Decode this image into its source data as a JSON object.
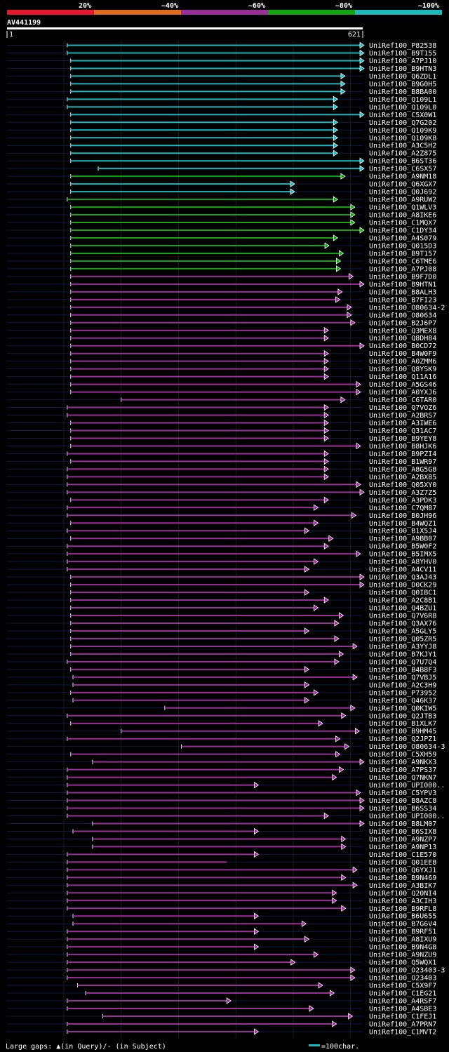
{
  "chart_data": {
    "type": "alignment-overview",
    "title": "AV441199",
    "query_length": 621,
    "axis": {
      "start_label": "1",
      "end_label": "621"
    },
    "identity_legend": [
      {
        "label": "20%",
        "color": "#e8172c"
      },
      {
        "label": "~40%",
        "color": "#e36c1b"
      },
      {
        "label": "~60%",
        "color": "#9b2f9a"
      },
      {
        "label": "~80%",
        "color": "#13a313"
      },
      {
        "label": "~100%",
        "color": "#1bb8be"
      }
    ],
    "gap_legend": "Large gaps: ▲(in Query)/- (in Subject)",
    "scale_legend": "=100char.",
    "hits": [
      {
        "id": "UniRef100_P82538",
        "start": 106,
        "end": 621,
        "cls": 4,
        "arrow": true
      },
      {
        "id": "UniRef100_B9T155",
        "start": 106,
        "end": 621,
        "cls": 4,
        "arrow": true
      },
      {
        "id": "UniRef100_A7PJ10",
        "start": 112,
        "end": 621,
        "cls": 4,
        "arrow": true
      },
      {
        "id": "UniRef100_B9HTN3",
        "start": 112,
        "end": 621,
        "cls": 4,
        "arrow": true
      },
      {
        "id": "UniRef100_Q6ZDL1",
        "start": 112,
        "end": 583,
        "cls": 4,
        "arrow": true
      },
      {
        "id": "UniRef100_B9G0H5",
        "start": 112,
        "end": 583,
        "cls": 4,
        "arrow": true
      },
      {
        "id": "UniRef100_B8BA00",
        "start": 112,
        "end": 583,
        "cls": 4,
        "arrow": true
      },
      {
        "id": "UniRef100_Q109L1",
        "start": 106,
        "end": 570,
        "cls": 4,
        "arrow": true
      },
      {
        "id": "UniRef100_Q109L0",
        "start": 106,
        "end": 570,
        "cls": 4,
        "arrow": true
      },
      {
        "id": "UniRef100_C5X0W1",
        "start": 112,
        "end": 621,
        "cls": 4,
        "arrow": true
      },
      {
        "id": "UniRef100_Q7G202",
        "start": 112,
        "end": 570,
        "cls": 4,
        "arrow": true
      },
      {
        "id": "UniRef100_Q109K9",
        "start": 112,
        "end": 570,
        "cls": 4,
        "arrow": true
      },
      {
        "id": "UniRef100_Q109K8",
        "start": 112,
        "end": 570,
        "cls": 4,
        "arrow": true
      },
      {
        "id": "UniRef100_A3C5H2",
        "start": 112,
        "end": 570,
        "cls": 4,
        "arrow": true
      },
      {
        "id": "UniRef100_A2Z875",
        "start": 112,
        "end": 570,
        "cls": 4,
        "arrow": true
      },
      {
        "id": "UniRef100_B6ST36",
        "start": 112,
        "end": 621,
        "cls": 4,
        "arrow": true
      },
      {
        "id": "UniRef100_C6SX57",
        "start": 160,
        "end": 621,
        "cls": 4,
        "arrow": true
      },
      {
        "id": "UniRef100_A9NM18",
        "start": 112,
        "end": 583,
        "cls": 3,
        "arrow": true
      },
      {
        "id": "UniRef100_Q6XGX7",
        "start": 112,
        "end": 495,
        "cls": 4,
        "arrow": true
      },
      {
        "id": "UniRef100_Q0J692",
        "start": 112,
        "end": 495,
        "cls": 4,
        "arrow": true
      },
      {
        "id": "UniRef100_A9RUW2",
        "start": 106,
        "end": 570,
        "cls": 3,
        "arrow": true
      },
      {
        "id": "UniRef100_Q1WLV3",
        "start": 112,
        "end": 600,
        "cls": 3,
        "arrow": true
      },
      {
        "id": "UniRef100_A8IKE6",
        "start": 112,
        "end": 600,
        "cls": 3,
        "arrow": true
      },
      {
        "id": "UniRef100_C1MQX7",
        "start": 112,
        "end": 600,
        "cls": 3,
        "arrow": true
      },
      {
        "id": "UniRef100_C1DY34",
        "start": 112,
        "end": 621,
        "cls": 3,
        "arrow": true
      },
      {
        "id": "UniRef100_A4S079",
        "start": 112,
        "end": 570,
        "cls": 3,
        "arrow": true
      },
      {
        "id": "UniRef100_Q015D3",
        "start": 112,
        "end": 555,
        "cls": 3,
        "arrow": true
      },
      {
        "id": "UniRef100_B9T157",
        "start": 112,
        "end": 580,
        "cls": 3,
        "arrow": true
      },
      {
        "id": "UniRef100_C6TME6",
        "start": 112,
        "end": 575,
        "cls": 3,
        "arrow": true
      },
      {
        "id": "UniRef100_A7PJ08",
        "start": 112,
        "end": 575,
        "cls": 3,
        "arrow": true
      },
      {
        "id": "UniRef100_B9F7D0",
        "start": 112,
        "end": 597,
        "cls": 2,
        "arrow": true
      },
      {
        "id": "UniRef100_B9HTN1",
        "start": 112,
        "end": 627,
        "cls": 2,
        "arrow": true
      },
      {
        "id": "UniRef100_B8ALH3",
        "start": 112,
        "end": 578,
        "cls": 2,
        "arrow": true
      },
      {
        "id": "UniRef100_B7FI23",
        "start": 112,
        "end": 574,
        "cls": 2,
        "arrow": true
      },
      {
        "id": "UniRef100_O80634-2",
        "start": 112,
        "end": 594,
        "cls": 2,
        "arrow": true
      },
      {
        "id": "UniRef100_O80634",
        "start": 112,
        "end": 594,
        "cls": 2,
        "arrow": true
      },
      {
        "id": "UniRef100_B2J6P7",
        "start": 112,
        "end": 600,
        "cls": 2,
        "arrow": true
      },
      {
        "id": "UniRef100_Q3MEX8",
        "start": 112,
        "end": 554,
        "cls": 2,
        "arrow": true
      },
      {
        "id": "UniRef100_Q8DH84",
        "start": 112,
        "end": 554,
        "cls": 2,
        "arrow": true
      },
      {
        "id": "UniRef100_B0CD72",
        "start": 112,
        "end": 630,
        "cls": 2,
        "arrow": true
      },
      {
        "id": "UniRef100_B4W0F9",
        "start": 112,
        "end": 554,
        "cls": 2,
        "arrow": true
      },
      {
        "id": "UniRef100_A0ZMM6",
        "start": 112,
        "end": 554,
        "cls": 2,
        "arrow": true
      },
      {
        "id": "UniRef100_Q8YSK9",
        "start": 112,
        "end": 554,
        "cls": 2,
        "arrow": true
      },
      {
        "id": "UniRef100_Q11A16",
        "start": 112,
        "end": 554,
        "cls": 2,
        "arrow": true
      },
      {
        "id": "UniRef100_A5GS46",
        "start": 112,
        "end": 610,
        "cls": 2,
        "arrow": true
      },
      {
        "id": "UniRef100_A0YXJ6",
        "start": 112,
        "end": 610,
        "cls": 2,
        "arrow": true
      },
      {
        "id": "UniRef100_C6TAR0",
        "start": 200,
        "end": 583,
        "cls": 2,
        "arrow": true
      },
      {
        "id": "UniRef100_Q7VOZ6",
        "start": 106,
        "end": 554,
        "cls": 2,
        "arrow": true
      },
      {
        "id": "UniRef100_A2BRS7",
        "start": 106,
        "end": 554,
        "cls": 2,
        "arrow": true
      },
      {
        "id": "UniRef100_A3IWE6",
        "start": 112,
        "end": 554,
        "cls": 2,
        "arrow": true
      },
      {
        "id": "UniRef100_Q31AC7",
        "start": 112,
        "end": 554,
        "cls": 2,
        "arrow": true
      },
      {
        "id": "UniRef100_B9YEY8",
        "start": 112,
        "end": 554,
        "cls": 2,
        "arrow": true
      },
      {
        "id": "UniRef100_B8HJK6",
        "start": 112,
        "end": 610,
        "cls": 2,
        "arrow": true
      },
      {
        "id": "UniRef100_B9PZI4",
        "start": 106,
        "end": 554,
        "cls": 2,
        "arrow": true
      },
      {
        "id": "UniRef100_B1WR97",
        "start": 112,
        "end": 554,
        "cls": 2,
        "arrow": true
      },
      {
        "id": "UniRef100_A8G5G8",
        "start": 106,
        "end": 554,
        "cls": 2,
        "arrow": true
      },
      {
        "id": "UniRef100_A2BX85",
        "start": 106,
        "end": 554,
        "cls": 2,
        "arrow": true
      },
      {
        "id": "UniRef100_Q05XY0",
        "start": 106,
        "end": 610,
        "cls": 2,
        "arrow": true
      },
      {
        "id": "UniRef100_A3Z7Z5",
        "start": 106,
        "end": 620,
        "cls": 2,
        "arrow": true
      },
      {
        "id": "UniRef100_A3PDK3",
        "start": 112,
        "end": 554,
        "cls": 2,
        "arrow": true
      },
      {
        "id": "UniRef100_C7QM87",
        "start": 106,
        "end": 536,
        "cls": 2,
        "arrow": true
      },
      {
        "id": "UniRef100_B0JH96",
        "start": 106,
        "end": 602,
        "cls": 2,
        "arrow": true
      },
      {
        "id": "UniRef100_B4WQZ1",
        "start": 112,
        "end": 536,
        "cls": 2,
        "arrow": true
      },
      {
        "id": "UniRef100_B1X5J4",
        "start": 106,
        "end": 520,
        "cls": 2,
        "arrow": true
      },
      {
        "id": "UniRef100_A9BB07",
        "start": 112,
        "end": 562,
        "cls": 2,
        "arrow": true
      },
      {
        "id": "UniRef100_B5W0F2",
        "start": 106,
        "end": 554,
        "cls": 2,
        "arrow": true
      },
      {
        "id": "UniRef100_B5IMX5",
        "start": 106,
        "end": 610,
        "cls": 2,
        "arrow": true
      },
      {
        "id": "UniRef100_A8YHV0",
        "start": 106,
        "end": 536,
        "cls": 2,
        "arrow": true
      },
      {
        "id": "UniRef100_A4CV11",
        "start": 106,
        "end": 520,
        "cls": 2,
        "arrow": true
      },
      {
        "id": "UniRef100_Q3AJ43",
        "start": 112,
        "end": 620,
        "cls": 2,
        "arrow": true
      },
      {
        "id": "UniRef100_D0CK29",
        "start": 112,
        "end": 620,
        "cls": 2,
        "arrow": true
      },
      {
        "id": "UniRef100_Q0IBC1",
        "start": 112,
        "end": 520,
        "cls": 2,
        "arrow": true
      },
      {
        "id": "UniRef100_A2C8B1",
        "start": 112,
        "end": 554,
        "cls": 2,
        "arrow": true
      },
      {
        "id": "UniRef100_Q4BZU1",
        "start": 112,
        "end": 536,
        "cls": 2,
        "arrow": true
      },
      {
        "id": "UniRef100_Q7V6R8",
        "start": 112,
        "end": 580,
        "cls": 2,
        "arrow": true
      },
      {
        "id": "UniRef100_Q3AX76",
        "start": 112,
        "end": 572,
        "cls": 2,
        "arrow": true
      },
      {
        "id": "UniRef100_A5GLY5",
        "start": 112,
        "end": 520,
        "cls": 2,
        "arrow": true
      },
      {
        "id": "UniRef100_Q05ZR5",
        "start": 112,
        "end": 572,
        "cls": 2,
        "arrow": true
      },
      {
        "id": "UniRef100_A3YYJ8",
        "start": 112,
        "end": 604,
        "cls": 2,
        "arrow": true
      },
      {
        "id": "UniRef100_B7KJY1",
        "start": 112,
        "end": 580,
        "cls": 2,
        "arrow": true
      },
      {
        "id": "UniRef100_Q7U7Q4",
        "start": 106,
        "end": 572,
        "cls": 2,
        "arrow": true
      },
      {
        "id": "UniRef100_B4B8F3",
        "start": 112,
        "end": 520,
        "cls": 2,
        "arrow": true
      },
      {
        "id": "UniRef100_Q7VBJ5",
        "start": 116,
        "end": 604,
        "cls": 2,
        "arrow": true
      },
      {
        "id": "UniRef100_A2C3H9",
        "start": 116,
        "end": 520,
        "cls": 2,
        "arrow": true
      },
      {
        "id": "UniRef100_P73952",
        "start": 112,
        "end": 536,
        "cls": 2,
        "arrow": true
      },
      {
        "id": "UniRef100_Q46K37",
        "start": 116,
        "end": 520,
        "cls": 2,
        "arrow": true
      },
      {
        "id": "UniRef100_Q0KIW5",
        "start": 276,
        "end": 600,
        "cls": 2,
        "arrow": true
      },
      {
        "id": "UniRef100_Q2JTB3",
        "start": 106,
        "end": 584,
        "cls": 2,
        "arrow": true
      },
      {
        "id": "UniRef100_B1XLK7",
        "start": 112,
        "end": 544,
        "cls": 2,
        "arrow": true
      },
      {
        "id": "UniRef100_B9HM45",
        "start": 200,
        "end": 608,
        "cls": 2,
        "arrow": true
      },
      {
        "id": "UniRef100_Q2JPZ1",
        "start": 106,
        "end": 574,
        "cls": 2,
        "arrow": true
      },
      {
        "id": "UniRef100_O80634-3",
        "start": 305,
        "end": 590,
        "cls": 2,
        "arrow": true
      },
      {
        "id": "UniRef100_C5XH59",
        "start": 112,
        "end": 574,
        "cls": 2,
        "arrow": true
      },
      {
        "id": "UniRef100_A9NKX3",
        "start": 150,
        "end": 620,
        "cls": 2,
        "arrow": true
      },
      {
        "id": "UniRef100_A7PS37",
        "start": 106,
        "end": 580,
        "cls": 2,
        "arrow": true
      },
      {
        "id": "UniRef100_Q7NKN7",
        "start": 106,
        "end": 568,
        "cls": 2,
        "arrow": true
      },
      {
        "id": "UniRef100_UPI0000_1",
        "label": "UniRef100_UPI000..",
        "start": 106,
        "end": 432,
        "cls": 2,
        "arrow": true
      },
      {
        "id": "UniRef100_C5YPV3",
        "start": 106,
        "end": 610,
        "cls": 2,
        "arrow": true
      },
      {
        "id": "UniRef100_B8AZC8",
        "start": 106,
        "end": 620,
        "cls": 2,
        "arrow": true
      },
      {
        "id": "UniRef100_B6SS34",
        "start": 106,
        "end": 620,
        "cls": 2,
        "arrow": true
      },
      {
        "id": "UniRef100_UPI0000_2",
        "label": "UniRef100_UPI000..",
        "start": 106,
        "end": 554,
        "cls": 2,
        "arrow": true
      },
      {
        "id": "UniRef100_B8LM07",
        "start": 150,
        "end": 620,
        "cls": 2,
        "arrow": true
      },
      {
        "id": "UniRef100_B6SIX8",
        "start": 116,
        "end": 432,
        "cls": 2,
        "arrow": true
      },
      {
        "id": "UniRef100_A9NZP7",
        "start": 150,
        "end": 584,
        "cls": 2,
        "arrow": true
      },
      {
        "id": "UniRef100_A9NP13",
        "start": 150,
        "end": 584,
        "cls": 2,
        "arrow": true
      },
      {
        "id": "UniRef100_C1E570",
        "start": 106,
        "end": 432,
        "cls": 2,
        "arrow": true
      },
      {
        "id": "UniRef100_Q01EE8",
        "start": 106,
        "end": 384,
        "cls": 2,
        "arrow": false
      },
      {
        "id": "UniRef100_Q6YXJ1",
        "start": 106,
        "end": 604,
        "cls": 2,
        "arrow": true
      },
      {
        "id": "UniRef100_B9N469",
        "start": 106,
        "end": 584,
        "cls": 2,
        "arrow": true
      },
      {
        "id": "UniRef100_A3BIK7",
        "start": 106,
        "end": 604,
        "cls": 2,
        "arrow": true
      },
      {
        "id": "UniRef100_Q20NI4",
        "start": 106,
        "end": 568,
        "cls": 2,
        "arrow": true
      },
      {
        "id": "UniRef100_A3CIH3",
        "start": 106,
        "end": 568,
        "cls": 2,
        "arrow": true
      },
      {
        "id": "UniRef100_B9RFL8",
        "start": 106,
        "end": 584,
        "cls": 2,
        "arrow": true
      },
      {
        "id": "UniRef100_B6U655",
        "start": 116,
        "end": 432,
        "cls": 2,
        "arrow": true
      },
      {
        "id": "UniRef100_B7G6V4",
        "start": 116,
        "end": 515,
        "cls": 2,
        "arrow": true
      },
      {
        "id": "UniRef100_B9RF51",
        "start": 106,
        "end": 432,
        "cls": 2,
        "arrow": true
      },
      {
        "id": "UniRef100_A8IXU9",
        "start": 106,
        "end": 520,
        "cls": 2,
        "arrow": true
      },
      {
        "id": "UniRef100_B9N4G8",
        "start": 106,
        "end": 432,
        "cls": 2,
        "arrow": true
      },
      {
        "id": "UniRef100_A9NZU9",
        "start": 106,
        "end": 536,
        "cls": 2,
        "arrow": true
      },
      {
        "id": "UniRef100_Q5WQX1",
        "start": 106,
        "end": 496,
        "cls": 2,
        "arrow": true
      },
      {
        "id": "UniRef100_O23403-3",
        "start": 106,
        "end": 600,
        "cls": 2,
        "arrow": true
      },
      {
        "id": "UniRef100_O23403",
        "start": 106,
        "end": 600,
        "cls": 2,
        "arrow": true
      },
      {
        "id": "UniRef100_C5X9F7",
        "start": 124,
        "end": 544,
        "cls": 2,
        "arrow": true
      },
      {
        "id": "UniRef100_C1EG21",
        "start": 138,
        "end": 564,
        "cls": 2,
        "arrow": true
      },
      {
        "id": "UniRef100_A4RSF7",
        "start": 106,
        "end": 384,
        "cls": 2,
        "arrow": true
      },
      {
        "id": "UniRef100_A4SBE3",
        "start": 106,
        "end": 528,
        "cls": 2,
        "arrow": true
      },
      {
        "id": "UniRef100_C1FEJ1",
        "start": 168,
        "end": 596,
        "cls": 2,
        "arrow": true
      },
      {
        "id": "UniRef100_A7PRN7",
        "start": 106,
        "end": 568,
        "cls": 2,
        "arrow": true
      },
      {
        "id": "UniRef100_C1MVT2",
        "start": 106,
        "end": 432,
        "cls": 2,
        "arrow": true
      }
    ]
  }
}
